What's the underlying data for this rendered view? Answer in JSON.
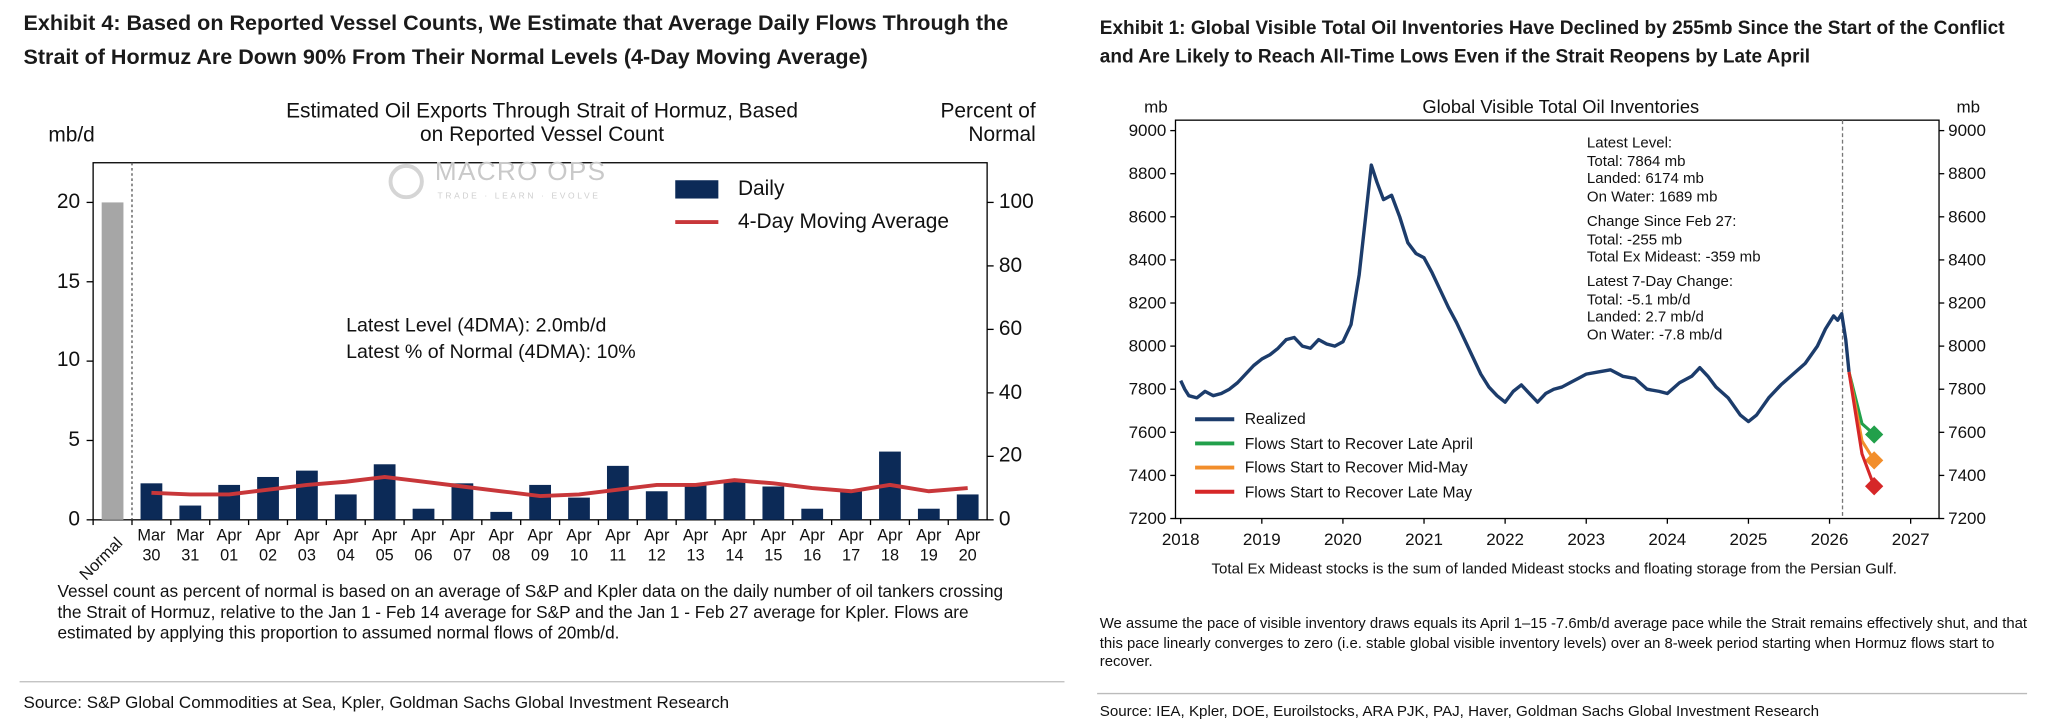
{
  "chart_data": [
    {
      "type": "bar",
      "exhibit_title": "Exhibit 4: Based on Reported Vessel Counts, We Estimate that Average Daily Flows Through the Strait of Hormuz Are Down 90% From Their Normal Levels (4-Day Moving Average)",
      "title": "Estimated Oil Exports Through Strait of Hormuz, Based on Reported Vessel Count",
      "y_label": "mb/d",
      "y2_label": "Percent of Normal",
      "categories": [
        "Normal",
        "Mar 30",
        "Mar 31",
        "Apr 01",
        "Apr 02",
        "Apr 03",
        "Apr 04",
        "Apr 05",
        "Apr 06",
        "Apr 07",
        "Apr 08",
        "Apr 09",
        "Apr 10",
        "Apr 11",
        "Apr 12",
        "Apr 13",
        "Apr 14",
        "Apr 15",
        "Apr 16",
        "Apr 17",
        "Apr 18",
        "Apr 19",
        "Apr 20"
      ],
      "normal": {
        "value": 20,
        "color": "#a6a6a6"
      },
      "series": [
        {
          "name": "Daily",
          "type": "bar",
          "color": "#0c2a57",
          "values": [
            null,
            2.3,
            0.9,
            2.2,
            2.7,
            3.1,
            1.6,
            3.5,
            0.7,
            2.3,
            0.5,
            2.2,
            1.4,
            3.4,
            1.8,
            2.2,
            2.4,
            2.1,
            0.7,
            1.8,
            4.3,
            0.7,
            1.6
          ]
        },
        {
          "name": "4-Day Moving Average",
          "type": "line",
          "color": "#c8373a",
          "values": [
            null,
            1.7,
            1.6,
            1.6,
            1.9,
            2.2,
            2.4,
            2.7,
            2.4,
            2.1,
            1.8,
            1.5,
            1.6,
            1.9,
            2.2,
            2.2,
            2.5,
            2.3,
            2.0,
            1.8,
            2.2,
            1.8,
            2.0
          ]
        }
      ],
      "ylim": [
        0,
        22.5
      ],
      "yticks": [
        0,
        5,
        10,
        15,
        20
      ],
      "y2lim": [
        0,
        112.5
      ],
      "y2ticks": [
        0,
        20,
        40,
        60,
        80,
        100
      ],
      "legend": "upper right",
      "annotations": [
        "Latest Level (4DMA): 2.0mb/d",
        "Latest % of Normal (4DMA): 10%"
      ],
      "watermark": {
        "brand": "MACRO OPS",
        "tagline": "TRADE · LEARN · EVOLVE"
      },
      "note": "Vessel count as percent of normal is based on an average of S&P and Kpler data on the daily number of oil tankers crossing the Strait of Hormuz, relative to the Jan 1 - Feb 14 average for S&P and the Jan 1 - Feb 27 average for Kpler. Flows are estimated by applying this proportion to assumed normal flows of 20mb/d.",
      "source": "Source: S&P Global Commodities at Sea, Kpler, Goldman Sachs Global Investment Research"
    },
    {
      "type": "line",
      "exhibit_title": "Exhibit 1: Global Visible Total Oil Inventories Have Declined by 255mb Since the Start of the Conflict and Are Likely to Reach All-Time Lows Even if the Strait Reopens by Late April",
      "title": "Global Visible Total Oil Inventories",
      "y_label": "mb",
      "y2_label": "mb",
      "xlim": [
        2018,
        2027.35
      ],
      "xticks": [
        2018,
        2019,
        2020,
        2021,
        2022,
        2023,
        2024,
        2025,
        2026,
        2027
      ],
      "ylim": [
        7200,
        9000
      ],
      "yticks": [
        7200,
        7400,
        7600,
        7800,
        8000,
        8200,
        8400,
        8600,
        8800,
        9000
      ],
      "y2lim": [
        7200,
        9000
      ],
      "y2ticks": [
        7200,
        7400,
        7600,
        7800,
        8000,
        8200,
        8400,
        8600,
        8800,
        9000
      ],
      "event_line_x": 2026.16,
      "series": [
        {
          "name": "Realized",
          "color": "#1c3c6b",
          "x": [
            2018.0,
            2018.05,
            2018.1,
            2018.2,
            2018.3,
            2018.4,
            2018.5,
            2018.6,
            2018.7,
            2018.8,
            2018.9,
            2019.0,
            2019.1,
            2019.2,
            2019.3,
            2019.4,
            2019.5,
            2019.6,
            2019.7,
            2019.8,
            2019.9,
            2020.0,
            2020.1,
            2020.2,
            2020.28,
            2020.35,
            2020.42,
            2020.5,
            2020.6,
            2020.7,
            2020.8,
            2020.9,
            2021.0,
            2021.1,
            2021.2,
            2021.3,
            2021.4,
            2021.5,
            2021.6,
            2021.7,
            2021.8,
            2021.9,
            2022.0,
            2022.1,
            2022.2,
            2022.3,
            2022.4,
            2022.5,
            2022.6,
            2022.7,
            2022.8,
            2022.9,
            2023.0,
            2023.15,
            2023.3,
            2023.45,
            2023.6,
            2023.75,
            2023.9,
            2024.0,
            2024.15,
            2024.3,
            2024.4,
            2024.5,
            2024.6,
            2024.75,
            2024.9,
            2025.0,
            2025.1,
            2025.25,
            2025.4,
            2025.55,
            2025.7,
            2025.85,
            2025.95,
            2026.05,
            2026.1,
            2026.15,
            2026.2,
            2026.24
          ],
          "values": [
            7840,
            7800,
            7770,
            7760,
            7790,
            7770,
            7780,
            7800,
            7830,
            7870,
            7910,
            7940,
            7960,
            7990,
            8030,
            8040,
            8000,
            7990,
            8030,
            8010,
            8000,
            8020,
            8100,
            8330,
            8600,
            8840,
            8760,
            8680,
            8700,
            8600,
            8480,
            8430,
            8410,
            8340,
            8260,
            8180,
            8110,
            8030,
            7950,
            7870,
            7810,
            7770,
            7740,
            7790,
            7820,
            7780,
            7740,
            7780,
            7800,
            7810,
            7830,
            7850,
            7870,
            7880,
            7890,
            7860,
            7850,
            7800,
            7790,
            7780,
            7830,
            7860,
            7900,
            7860,
            7810,
            7760,
            7680,
            7650,
            7680,
            7760,
            7820,
            7870,
            7920,
            8000,
            8080,
            8140,
            8120,
            8150,
            8030,
            7880
          ]
        },
        {
          "name": "Flows Start to Recover Late April",
          "color": "#22a04b",
          "marker": "diamond",
          "x": [
            2026.24,
            2026.4,
            2026.55
          ],
          "values": [
            7880,
            7640,
            7590
          ]
        },
        {
          "name": "Flows Start to Recover Mid-May",
          "color": "#f28e2b",
          "marker": "diamond",
          "x": [
            2026.24,
            2026.4,
            2026.55
          ],
          "values": [
            7880,
            7560,
            7470
          ]
        },
        {
          "name": "Flows Start to Recover Late May",
          "color": "#d62728",
          "marker": "diamond",
          "x": [
            2026.24,
            2026.4,
            2026.55
          ],
          "values": [
            7880,
            7500,
            7350
          ]
        }
      ],
      "legend": "lower left",
      "annotations": [
        "Latest Level:",
        "Total: 7864 mb",
        "Landed: 6174 mb",
        "On Water: 1689 mb",
        "Change Since Feb 27:",
        "Total: -255 mb",
        "Total Ex Mideast: -359 mb",
        "Latest 7-Day Change:",
        "Total: -5.1 mb/d",
        "Landed: 2.7 mb/d",
        "On Water: -7.8 mb/d"
      ],
      "footnote": "Total Ex Mideast stocks is the sum of landed Mideast stocks and floating storage from the Persian Gulf.",
      "note": "We assume the pace of visible inventory draws equals its April 1–15 -7.6mb/d average pace while the Strait remains effectively shut, and that this pace linearly converges to zero (i.e. stable global visible inventory levels) over an 8-week period starting when Hormuz flows start to recover.",
      "source": "Source: IEA, Kpler, DOE, Euroilstocks, ARA PJK, PAJ, Haver, Goldman Sachs Global Investment Research"
    }
  ]
}
